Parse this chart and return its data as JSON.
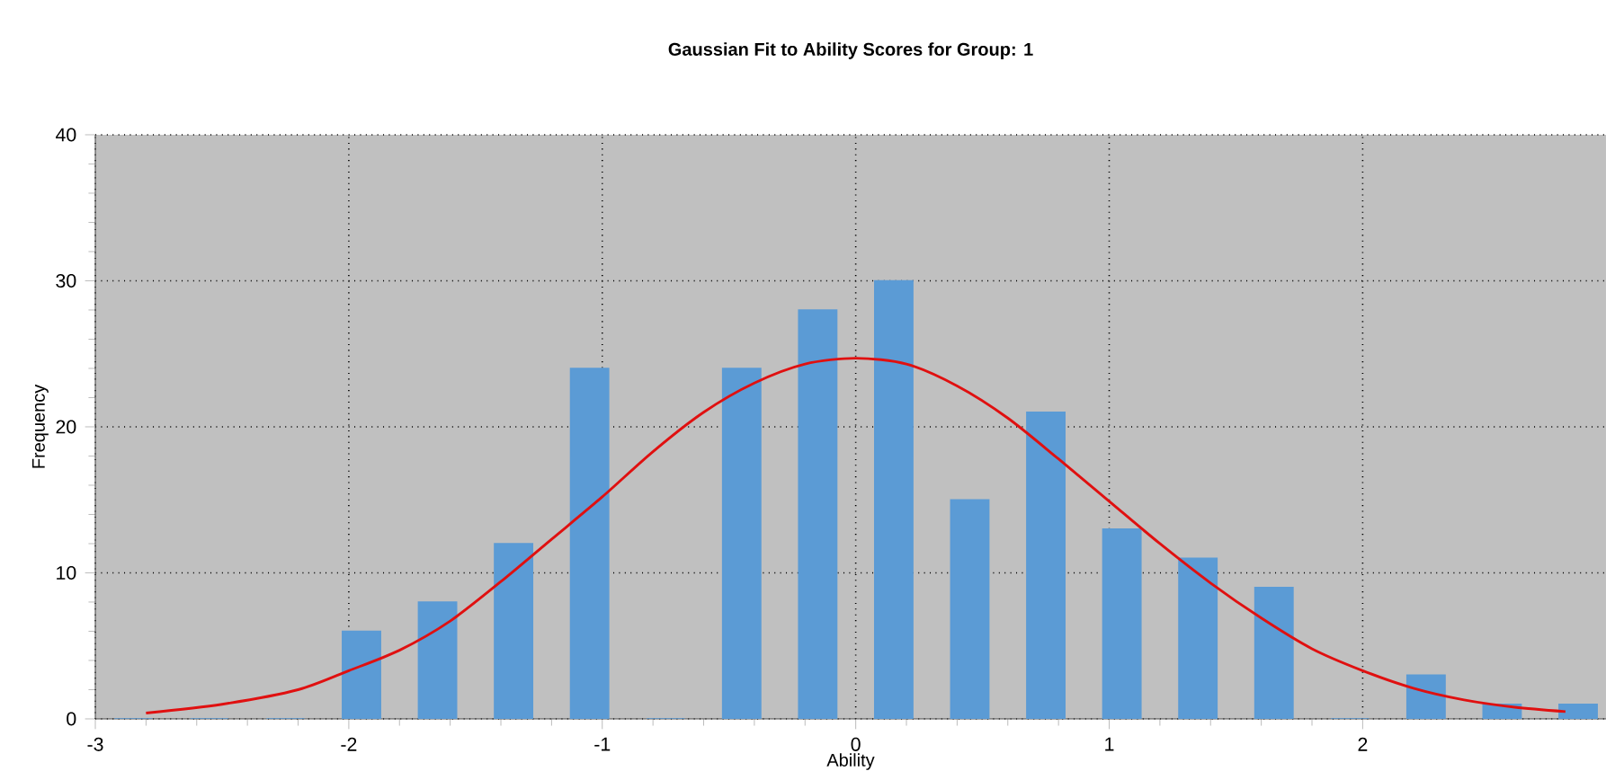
{
  "chart_data": {
    "type": "histogram",
    "title": "Gaussian Fit to Ability Scores for Group: 1",
    "xlabel": "Ability",
    "ylabel": "Frequency",
    "xlim": [
      -3,
      2.96
    ],
    "ylim": [
      0,
      40
    ],
    "xticks": [
      -3,
      -2,
      -1,
      0,
      1,
      2
    ],
    "yticks": [
      0,
      10,
      20,
      30,
      40
    ],
    "grid": true,
    "series": [
      {
        "color": "#5b9bd5",
        "bins": [
          -3,
          -2.7,
          -2.4,
          -2.1,
          -1.8,
          -1.5,
          -1.2,
          -0.9,
          -0.6,
          -0.3,
          0,
          0.3,
          0.6,
          0.9,
          1.2,
          1.5,
          1.8,
          2.1,
          2.4,
          2.7,
          3.0
        ],
        "values": [
          0,
          0,
          0,
          6,
          8,
          12,
          24,
          0,
          24,
          28,
          30,
          15,
          21,
          13,
          11,
          9,
          0,
          3,
          1,
          1
        ]
      },
      {
        "type": "line",
        "color": "#e01010",
        "x": [
          -2.8,
          -2.5,
          -2.2,
          -2.0,
          -1.8,
          -1.6,
          -1.4,
          -1.2,
          -1.0,
          -0.8,
          -0.6,
          -0.4,
          -0.2,
          0,
          0.2,
          0.4,
          0.6,
          0.8,
          1.0,
          1.2,
          1.4,
          1.6,
          1.8,
          2.0,
          2.2,
          2.4,
          2.6,
          2.8
        ],
        "values": [
          0.4,
          1.0,
          2.0,
          3.3,
          4.7,
          6.7,
          9.4,
          12.3,
          15.2,
          18.3,
          21,
          23,
          24.3,
          24.7,
          24.3,
          22.8,
          20.6,
          17.8,
          14.9,
          12,
          9.3,
          6.9,
          4.8,
          3.3,
          2.1,
          1.3,
          0.8,
          0.5
        ]
      }
    ]
  }
}
